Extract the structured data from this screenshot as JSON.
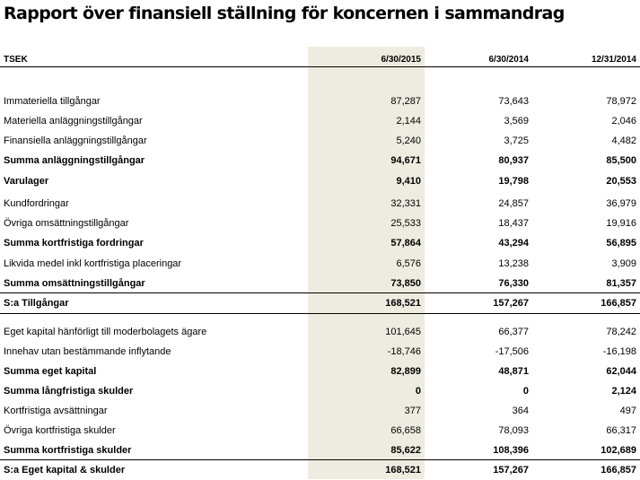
{
  "title": "Rapport över finansiell ställning för koncernen i sammandrag",
  "header": {
    "label": "TSEK",
    "columns": [
      "6/30/2015",
      "6/30/2014",
      "12/31/2014"
    ]
  },
  "rows": [
    {
      "label": "Immateriella tillgångar",
      "values": [
        "87,287",
        "73,643",
        "78,972"
      ],
      "bold": false
    },
    {
      "label": "Materiella anläggningstillgångar",
      "values": [
        "2,144",
        "3,569",
        "2,046"
      ],
      "bold": false
    },
    {
      "label": "Finansiella anläggningstillgångar",
      "values": [
        "5,240",
        "3,725",
        "4,482"
      ],
      "bold": false
    },
    {
      "label": "Summa anläggningstillgångar",
      "values": [
        "94,671",
        "80,937",
        "85,500"
      ],
      "bold": true
    },
    {
      "label": "Varulager",
      "values": [
        "9,410",
        "19,798",
        "20,553"
      ],
      "bold": true
    },
    {
      "label": "Kundfordringar",
      "values": [
        "32,331",
        "24,857",
        "36,979"
      ],
      "bold": false
    },
    {
      "label": "Övriga omsättningstillgångar",
      "values": [
        "25,533",
        "18,437",
        "19,916"
      ],
      "bold": false
    },
    {
      "label": "Summa kortfristiga fordringar",
      "values": [
        "57,864",
        "43,294",
        "56,895"
      ],
      "bold": true
    },
    {
      "label": "Likvida medel inkl kortfristiga placeringar",
      "values": [
        "6,576",
        "13,238",
        "3,909"
      ],
      "bold": false
    },
    {
      "label": "Summa omsättningstillgångar",
      "values": [
        "73,850",
        "76,330",
        "81,357"
      ],
      "bold": true
    },
    {
      "label": "S:a Tillgångar",
      "values": [
        "168,521",
        "157,267",
        "166,857"
      ],
      "bold": true
    },
    {
      "label": "Eget kapital hänförligt till moderbolagets ägare",
      "values": [
        "101,645",
        "66,377",
        "78,242"
      ],
      "bold": false
    },
    {
      "label": "Innehav utan bestämmande inflytande",
      "values": [
        "-18,746",
        "-17,506",
        "-16,198"
      ],
      "bold": false
    },
    {
      "label": "Summa eget kapital",
      "values": [
        "82,899",
        "48,871",
        "62,044"
      ],
      "bold": true
    },
    {
      "label": "Summa långfristiga skulder",
      "values": [
        "0",
        "0",
        "2,124"
      ],
      "bold": true
    },
    {
      "label": "Kortfristiga avsättningar",
      "values": [
        "377",
        "364",
        "497"
      ],
      "bold": false
    },
    {
      "label": "Övriga kortfristiga skulder",
      "values": [
        "66,658",
        "78,093",
        "66,317"
      ],
      "bold": false
    },
    {
      "label": "Summa kortfristiga skulder",
      "values": [
        "85,622",
        "108,396",
        "102,689"
      ],
      "bold": true
    },
    {
      "label": "S:a Eget kapital & skulder",
      "values": [
        "168,521",
        "157,267",
        "166,857"
      ],
      "bold": true
    }
  ]
}
